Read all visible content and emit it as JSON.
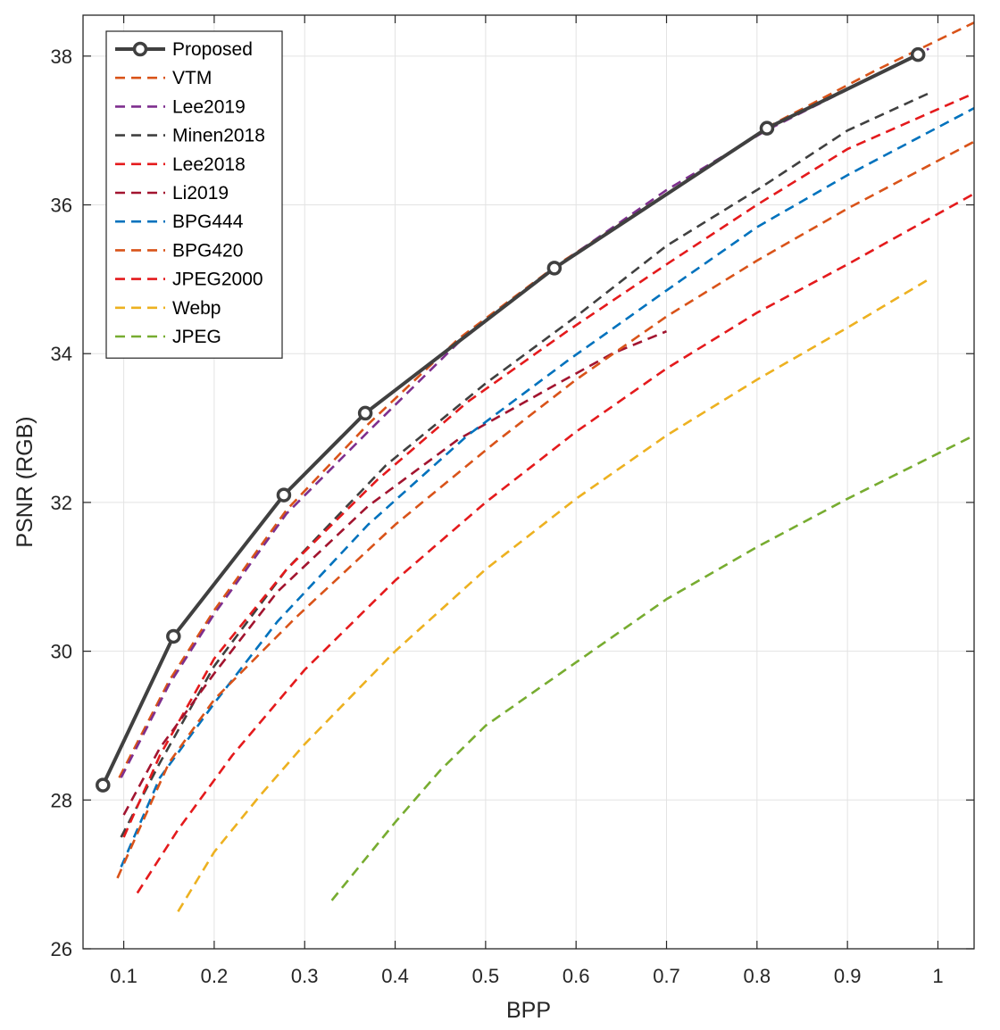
{
  "chart_data": {
    "type": "line",
    "xlabel": "BPP",
    "ylabel": "PSNR (RGB)",
    "xlim": [
      0.055,
      1.04
    ],
    "ylim": [
      26,
      38.55
    ],
    "xticks": [
      0.1,
      0.2,
      0.3,
      0.4,
      0.5,
      0.6,
      0.7,
      0.8,
      0.9,
      1
    ],
    "xtick_labels": [
      "0.1",
      "0.2",
      "0.3",
      "0.4",
      "0.5",
      "0.6",
      "0.7",
      "0.8",
      "0.9",
      "1"
    ],
    "yticks": [
      26,
      28,
      30,
      32,
      34,
      36,
      38
    ],
    "ytick_labels": [
      "26",
      "28",
      "30",
      "32",
      "34",
      "36",
      "38"
    ],
    "grid": true,
    "legend_position": "top-left",
    "series": [
      {
        "name": "Proposed",
        "color": "#404040",
        "style": "solid",
        "marker": "circle",
        "x": [
          0.077,
          0.155,
          0.277,
          0.367,
          0.576,
          0.811,
          0.978
        ],
        "y": [
          28.2,
          30.2,
          32.1,
          33.2,
          35.15,
          37.03,
          38.02
        ]
      },
      {
        "name": "VTM",
        "color": "#D95319",
        "style": "dashed",
        "x": [
          0.095,
          0.15,
          0.2,
          0.28,
          0.37,
          0.47,
          0.58,
          0.7,
          0.82,
          0.93,
          1.04
        ],
        "y": [
          28.3,
          29.6,
          30.55,
          31.9,
          33.05,
          34.2,
          35.2,
          36.15,
          37.1,
          37.8,
          38.45
        ]
      },
      {
        "name": "Lee2019",
        "color": "#7E2F8E",
        "style": "dashed",
        "x": [
          0.097,
          0.15,
          0.2,
          0.28,
          0.37,
          0.47,
          0.57,
          0.7,
          0.81,
          0.9,
          0.99
        ],
        "y": [
          28.3,
          29.55,
          30.5,
          31.85,
          32.95,
          34.15,
          35.1,
          36.2,
          37.0,
          37.55,
          38.1
        ]
      },
      {
        "name": "Minen2018",
        "color": "#404040",
        "style": "dashed",
        "x": [
          0.097,
          0.14,
          0.2,
          0.28,
          0.39,
          0.5,
          0.6,
          0.7,
          0.8,
          0.9,
          0.99
        ],
        "y": [
          27.5,
          28.5,
          29.8,
          31.1,
          32.5,
          33.6,
          34.5,
          35.45,
          36.2,
          37.0,
          37.5
        ]
      },
      {
        "name": "Lee2018",
        "color": "#E41A1C",
        "style": "dashed",
        "x": [
          0.1,
          0.14,
          0.2,
          0.28,
          0.38,
          0.48,
          0.59,
          0.7,
          0.8,
          0.9,
          1.04
        ],
        "y": [
          27.5,
          28.6,
          29.9,
          31.1,
          32.3,
          33.35,
          34.3,
          35.2,
          36.0,
          36.75,
          37.5
        ]
      },
      {
        "name": "Li2019",
        "color": "#A2142F",
        "style": "dashed",
        "x": [
          0.1,
          0.14,
          0.2,
          0.27,
          0.37,
          0.47,
          0.58,
          0.64,
          0.7
        ],
        "y": [
          27.8,
          28.7,
          29.7,
          30.8,
          31.95,
          32.85,
          33.6,
          34.0,
          34.3
        ]
      },
      {
        "name": "BPG444",
        "color": "#0072BD",
        "style": "dashed",
        "x": [
          0.097,
          0.14,
          0.2,
          0.27,
          0.37,
          0.48,
          0.59,
          0.7,
          0.8,
          0.9,
          1.04
        ],
        "y": [
          27.1,
          28.3,
          29.3,
          30.4,
          31.7,
          32.9,
          33.9,
          34.85,
          35.7,
          36.4,
          37.3
        ]
      },
      {
        "name": "BPG420",
        "color": "#D95319",
        "style": "dashed",
        "x": [
          0.093,
          0.15,
          0.2,
          0.29,
          0.4,
          0.51,
          0.6,
          0.7,
          0.8,
          0.9,
          1.04
        ],
        "y": [
          26.95,
          28.5,
          29.35,
          30.45,
          31.7,
          32.8,
          33.65,
          34.5,
          35.25,
          35.95,
          36.85
        ]
      },
      {
        "name": "JPEG2000",
        "color": "#E41A1C",
        "style": "dashed",
        "x": [
          0.115,
          0.16,
          0.22,
          0.3,
          0.4,
          0.5,
          0.6,
          0.7,
          0.8,
          0.9,
          1.04
        ],
        "y": [
          26.75,
          27.6,
          28.6,
          29.75,
          30.95,
          32.0,
          32.95,
          33.8,
          34.55,
          35.2,
          36.15
        ]
      },
      {
        "name": "Webp",
        "color": "#EDB120",
        "style": "dashed",
        "x": [
          0.16,
          0.2,
          0.25,
          0.3,
          0.4,
          0.5,
          0.6,
          0.7,
          0.8,
          0.9,
          0.99
        ],
        "y": [
          26.5,
          27.3,
          28.05,
          28.75,
          30.0,
          31.1,
          32.05,
          32.9,
          33.65,
          34.35,
          35.0
        ]
      },
      {
        "name": "JPEG",
        "color": "#77AC30",
        "style": "dashed",
        "x": [
          0.33,
          0.36,
          0.4,
          0.45,
          0.5,
          0.6,
          0.7,
          0.8,
          0.9,
          1.04
        ],
        "y": [
          26.65,
          27.1,
          27.7,
          28.4,
          29.0,
          29.85,
          30.7,
          31.4,
          32.05,
          32.9
        ]
      }
    ]
  }
}
